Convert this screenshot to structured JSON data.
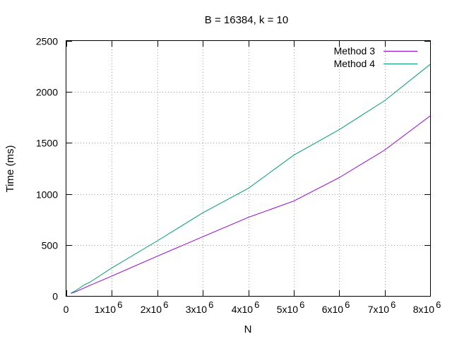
{
  "chart_data": {
    "type": "line",
    "title": "B = 16384, k = 10",
    "xlabel": "N",
    "ylabel": "Time (ms)",
    "xlim": [
      0,
      8000000
    ],
    "ylim": [
      0,
      2500
    ],
    "grid": true,
    "legend_position": "top-right",
    "x_ticks": [
      {
        "value": 0,
        "base": "0",
        "exp": ""
      },
      {
        "value": 1000000,
        "base": "1x10",
        "exp": "6"
      },
      {
        "value": 2000000,
        "base": "2x10",
        "exp": "6"
      },
      {
        "value": 3000000,
        "base": "3x10",
        "exp": "6"
      },
      {
        "value": 4000000,
        "base": "4x10",
        "exp": "6"
      },
      {
        "value": 5000000,
        "base": "5x10",
        "exp": "6"
      },
      {
        "value": 6000000,
        "base": "6x10",
        "exp": "6"
      },
      {
        "value": 7000000,
        "base": "7x10",
        "exp": "6"
      },
      {
        "value": 8000000,
        "base": "8x10",
        "exp": "6"
      }
    ],
    "y_ticks": [
      {
        "value": 0,
        "label": "0"
      },
      {
        "value": 500,
        "label": "500"
      },
      {
        "value": 1000,
        "label": "1000"
      },
      {
        "value": 1500,
        "label": "1500"
      },
      {
        "value": 2000,
        "label": "2000"
      },
      {
        "value": 2500,
        "label": "2500"
      }
    ],
    "series": [
      {
        "name": "Method 3",
        "color": "#9400d3",
        "x": [
          100000,
          200000,
          300000,
          400000,
          500000,
          1000000,
          2000000,
          3000000,
          4000000,
          5000000,
          6000000,
          7000000,
          8000000
        ],
        "y": [
          25,
          40,
          60,
          80,
          100,
          195,
          390,
          580,
          770,
          930,
          1160,
          1430,
          1765
        ]
      },
      {
        "name": "Method 4",
        "color": "#009e73",
        "x": [
          100000,
          200000,
          300000,
          400000,
          500000,
          1000000,
          2000000,
          3000000,
          4000000,
          5000000,
          6000000,
          7000000,
          8000000
        ],
        "y": [
          28,
          50,
          80,
          110,
          130,
          275,
          540,
          815,
          1055,
          1380,
          1630,
          1915,
          2270
        ]
      }
    ]
  }
}
